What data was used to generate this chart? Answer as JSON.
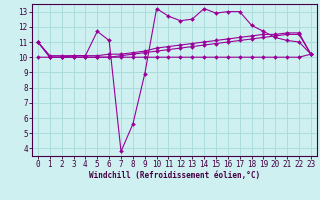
{
  "xlabel": "Windchill (Refroidissement éolien,°C)",
  "background_color": "#cef0f0",
  "grid_color": "#aadddd",
  "line_color": "#990099",
  "x_values": [
    0,
    1,
    2,
    3,
    4,
    5,
    6,
    7,
    8,
    9,
    10,
    11,
    12,
    13,
    14,
    15,
    16,
    17,
    18,
    19,
    20,
    21,
    22,
    23
  ],
  "line1_y": [
    11.0,
    10.0,
    10.0,
    10.1,
    10.1,
    11.7,
    11.1,
    3.8,
    5.6,
    8.9,
    13.2,
    12.7,
    12.4,
    12.5,
    13.2,
    12.9,
    13.0,
    13.0,
    12.1,
    11.7,
    11.3,
    11.1,
    11.0,
    10.2
  ],
  "line2_y": [
    11.0,
    10.1,
    10.1,
    10.1,
    10.1,
    10.1,
    10.2,
    10.2,
    10.3,
    10.4,
    10.6,
    10.7,
    10.8,
    10.9,
    11.0,
    11.1,
    11.2,
    11.3,
    11.4,
    11.5,
    11.5,
    11.6,
    11.6,
    10.2
  ],
  "line3_y": [
    11.0,
    10.0,
    10.0,
    10.0,
    10.0,
    10.0,
    10.0,
    10.1,
    10.2,
    10.3,
    10.4,
    10.5,
    10.6,
    10.7,
    10.8,
    10.9,
    11.0,
    11.1,
    11.2,
    11.3,
    11.4,
    11.5,
    11.5,
    10.2
  ],
  "line4_y": [
    10.0,
    10.0,
    10.0,
    10.0,
    10.0,
    10.0,
    10.0,
    10.0,
    10.0,
    10.0,
    10.0,
    10.0,
    10.0,
    10.0,
    10.0,
    10.0,
    10.0,
    10.0,
    10.0,
    10.0,
    10.0,
    10.0,
    10.0,
    10.2
  ],
  "ylim_min": 3.5,
  "ylim_max": 13.5,
  "xlim_min": -0.5,
  "xlim_max": 23.5,
  "yticks": [
    4,
    5,
    6,
    7,
    8,
    9,
    10,
    11,
    12,
    13
  ],
  "xticks": [
    0,
    1,
    2,
    3,
    4,
    5,
    6,
    7,
    8,
    9,
    10,
    11,
    12,
    13,
    14,
    15,
    16,
    17,
    18,
    19,
    20,
    21,
    22,
    23
  ],
  "tick_fontsize": 5.5,
  "xlabel_fontsize": 5.5,
  "marker_size": 2,
  "linewidth": 0.8
}
